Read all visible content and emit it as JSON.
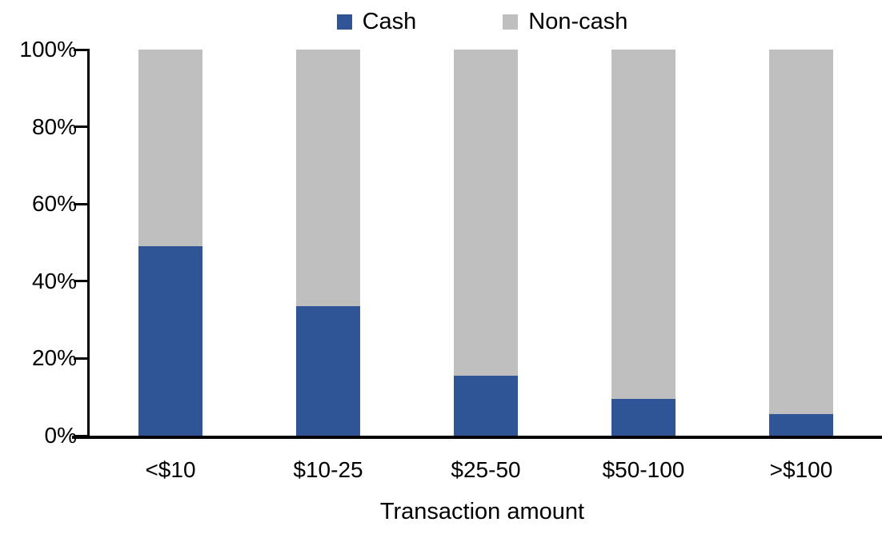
{
  "chart_data": {
    "type": "bar",
    "stacked": true,
    "percent": true,
    "title": "",
    "xlabel": "Transaction amount",
    "ylabel": "",
    "categories": [
      "<$10",
      "$10-25",
      "$25-50",
      "$50-100",
      ">$100"
    ],
    "series": [
      {
        "name": "Cash",
        "color": "#2F5596",
        "values": [
          49,
          33.5,
          15.5,
          9.5,
          5.5
        ]
      },
      {
        "name": "Non-cash",
        "color": "#BFBFBF",
        "values": [
          51,
          66.5,
          84.5,
          90.5,
          94.5
        ]
      }
    ],
    "y_ticks": [
      "0%",
      "20%",
      "40%",
      "60%",
      "80%",
      "100%"
    ],
    "ylim": [
      0,
      100
    ],
    "legend_position": "top",
    "grid": false,
    "axis_color": "#000000"
  }
}
